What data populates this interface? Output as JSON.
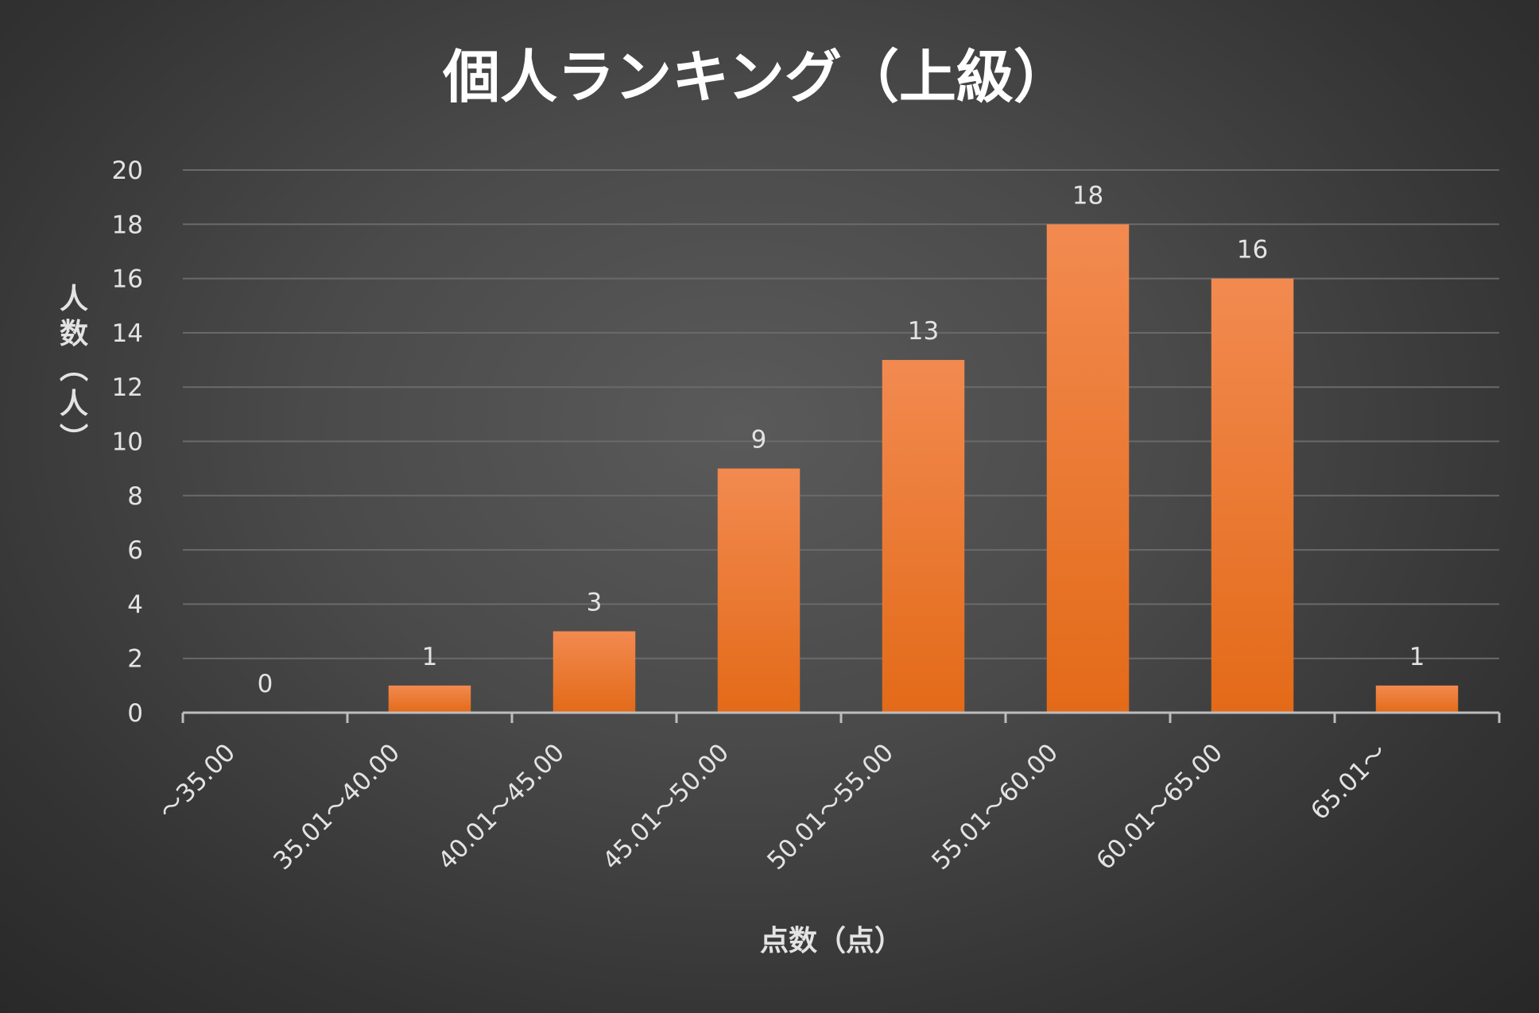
{
  "chart_data": {
    "type": "bar",
    "title": "個人ランキング（上級）",
    "xlabel": "点数（点）",
    "ylabel": "人数（人）",
    "categories": [
      "～35.00",
      "35.01～40.00",
      "40.01～45.00",
      "45.01～50.00",
      "50.01～55.00",
      "55.01～60.00",
      "60.01～65.00",
      "65.01～"
    ],
    "values": [
      0,
      1,
      3,
      9,
      13,
      18,
      16,
      1
    ],
    "ylim": [
      0,
      20
    ],
    "yticks": [
      0,
      2,
      4,
      6,
      8,
      10,
      12,
      14,
      16,
      18,
      20
    ],
    "grid": true,
    "legend": "none",
    "data_labels": true,
    "colors": {
      "bar_top": "#f28a50",
      "bar_bottom": "#e36a18",
      "grid": "#6a6a6a",
      "axis": "#bdbdbd",
      "text": "#e3e3e3",
      "title": "#ffffff"
    }
  }
}
